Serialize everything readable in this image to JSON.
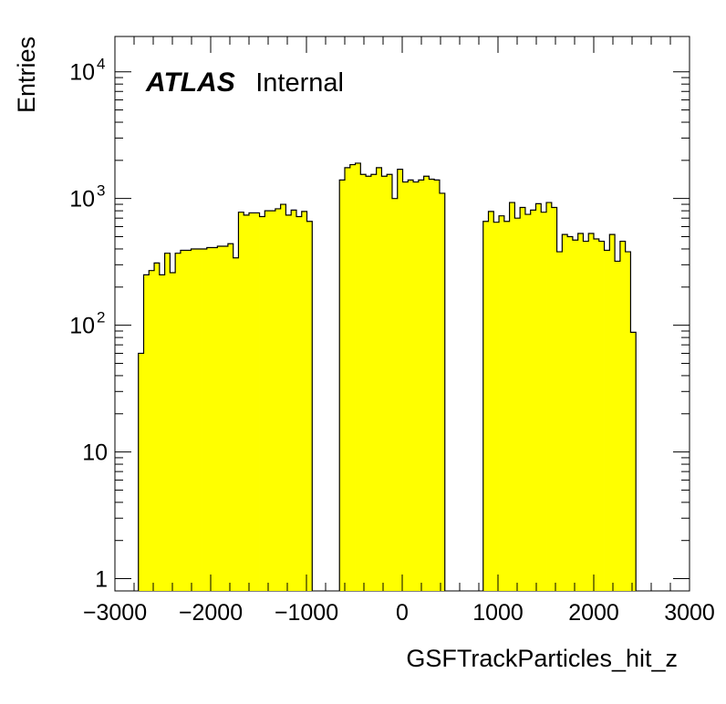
{
  "chart_data": {
    "type": "bar",
    "histogram": true,
    "xlabel": "GSFTrackParticles_hit_z",
    "ylabel": "Entries",
    "annotation": {
      "experiment": "ATLAS",
      "status": "Internal"
    },
    "x_ticks": [
      -3000,
      -2000,
      -1000,
      0,
      1000,
      2000,
      3000
    ],
    "x_tick_labels": [
      "−3000",
      "−2000",
      "−1000",
      "0",
      "1000",
      "2000",
      "3000"
    ],
    "y_ticks": [
      1,
      10,
      100,
      1000,
      10000
    ],
    "y_tick_labels": [
      {
        "base": "1",
        "exp": ""
      },
      {
        "base": "10",
        "exp": ""
      },
      {
        "base": "10",
        "exp": "2"
      },
      {
        "base": "10",
        "exp": "3"
      },
      {
        "base": "10",
        "exp": "4"
      }
    ],
    "xlim": [
      -3000,
      3000
    ],
    "ylim": [
      0.8,
      19000
    ],
    "y_scale": "log",
    "bin_width": 55,
    "fill_color": "#ffff00",
    "line_color": "#000000",
    "segments": [
      {
        "x_start": -2755,
        "values": [
          60,
          250,
          270,
          310,
          250,
          370,
          260,
          370,
          390,
          390,
          400,
          400,
          400,
          410,
          410,
          420,
          420,
          440,
          340,
          780,
          740,
          770,
          770,
          720,
          800,
          800,
          830,
          900,
          740,
          810,
          720,
          790,
          660
        ]
      },
      {
        "x_start": -655,
        "values": [
          1400,
          1750,
          1850,
          1900,
          1550,
          1500,
          1550,
          1750,
          1500,
          1550,
          1000,
          1700,
          1350,
          1400,
          1350,
          1400,
          1500,
          1420,
          1400,
          1100
        ]
      },
      {
        "x_start": 845,
        "values": [
          660,
          790,
          650,
          730,
          660,
          930,
          700,
          850,
          750,
          810,
          910,
          780,
          930,
          850,
          380,
          520,
          500,
          470,
          530,
          460,
          530,
          480,
          460,
          390,
          520,
          320,
          460,
          380,
          88
        ]
      }
    ]
  }
}
